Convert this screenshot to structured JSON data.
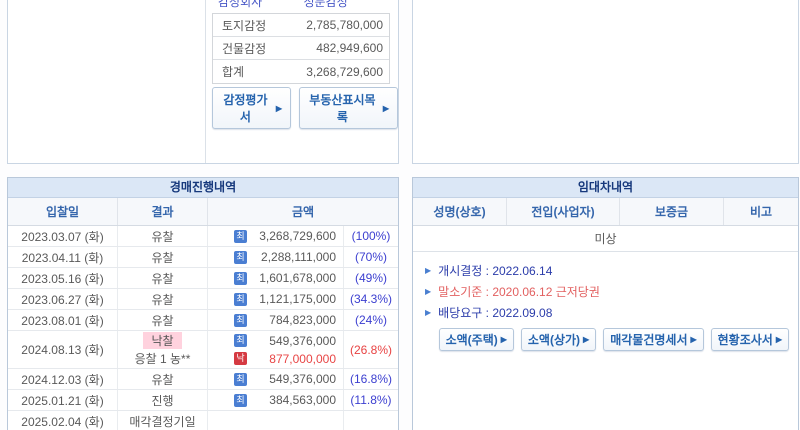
{
  "icons": {
    "arrow_right": "▶",
    "note_bullet": "▶"
  },
  "colors": {
    "panel_title_bg": "#dbe7f6",
    "panel_title_text": "#16387c",
    "header_text_blue": "#3566ac",
    "percent_blue": "#3c3fd0",
    "alert_red": "#e84343",
    "badge_blue": "#4a7ed2",
    "badge_red": "#d53a42",
    "highlight_pink": "#ffd2de",
    "note_navy": "#2b3caa",
    "note_red": "#e26060",
    "button_blue": "#2563ad"
  },
  "appraisal": {
    "header": {
      "company_label": "감정회사",
      "company_value": "정문감정"
    },
    "rows": [
      {
        "label": "토지감정",
        "value": "2,785,780,000"
      },
      {
        "label": "건물감정",
        "value": "482,949,600"
      },
      {
        "label": "합계",
        "value": "3,268,729,600"
      }
    ],
    "buttons": [
      {
        "label": "감정평가서"
      },
      {
        "label": "부동산표시목록"
      }
    ]
  },
  "auction": {
    "title": "경매진행내역",
    "col_date": "입찰일",
    "col_result": "결과",
    "col_amount": "금액",
    "rows": [
      {
        "date": "2023.03.07 (화)",
        "result": "유찰",
        "badge": "최",
        "amount": "3,268,729,600",
        "percent": "(100%)"
      },
      {
        "date": "2023.04.11 (화)",
        "result": "유찰",
        "badge": "최",
        "amount": "2,288,111,000",
        "percent": "(70%)"
      },
      {
        "date": "2023.05.16 (화)",
        "result": "유찰",
        "badge": "최",
        "amount": "1,601,678,000",
        "percent": "(49%)"
      },
      {
        "date": "2023.06.27 (화)",
        "result": "유찰",
        "badge": "최",
        "amount": "1,121,175,000",
        "percent": "(34.3%)"
      },
      {
        "date": "2023.08.01 (화)",
        "result": "유찰",
        "badge": "최",
        "amount": "784,823,000",
        "percent": "(24%)"
      },
      {
        "date": "2024.08.13 (화)",
        "result": "낙찰",
        "result_sub": "응찰 1  농**",
        "lines": [
          {
            "badge": "최",
            "amount": "549,376,000"
          },
          {
            "badge": "낙",
            "amount": "877,000,000"
          }
        ],
        "percent": "(26.8%)"
      },
      {
        "date": "2024.12.03 (화)",
        "result": "유찰",
        "badge": "최",
        "amount": "549,376,000",
        "percent": "(16.8%)"
      },
      {
        "date": "2025.01.21 (화)",
        "result": "진행",
        "badge": "최",
        "amount": "384,563,000",
        "percent": "(11.8%)"
      },
      {
        "date": "2025.02.04 (화)",
        "result": "매각결정기일",
        "amount": "",
        "percent": ""
      }
    ]
  },
  "lease": {
    "title": "임대차내역",
    "col_name": "성명(상호)",
    "col_movein": "전입(사업자)",
    "col_deposit": "보증금",
    "col_note": "비고",
    "empty_text": "미상",
    "notes": [
      {
        "text": "개시결정 : 2022.06.14"
      },
      {
        "text": "말소기준 : 2020.06.12 근저당권"
      },
      {
        "text": "배당요구 : 2022.09.08"
      }
    ],
    "buttons": [
      {
        "label": "소액(주택)"
      },
      {
        "label": "소액(상가)"
      },
      {
        "label": "매각물건명세서"
      },
      {
        "label": "현황조사서"
      }
    ]
  }
}
